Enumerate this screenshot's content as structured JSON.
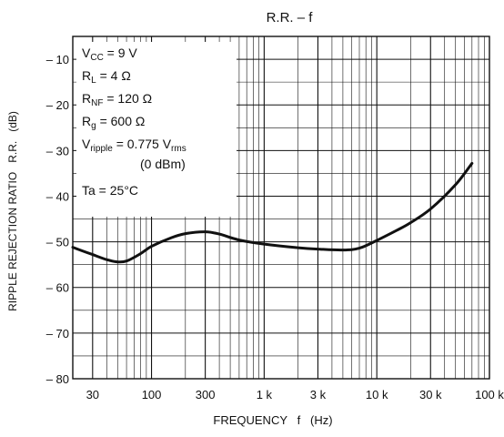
{
  "chart_data": {
    "type": "line",
    "title": "R.R. – f",
    "xlabel": "FREQUENCY   f   (Hz)",
    "ylabel": "RIPPLE REJECTION RATIO   R.R.   (dB)",
    "x_scale": "log",
    "xlim": [
      20,
      100000
    ],
    "ylim": [
      -80,
      -5
    ],
    "x_ticks": [
      {
        "value": 30,
        "label": "30"
      },
      {
        "value": 100,
        "label": "100"
      },
      {
        "value": 300,
        "label": "300"
      },
      {
        "value": 1000,
        "label": "1 k"
      },
      {
        "value": 3000,
        "label": "3 k"
      },
      {
        "value": 10000,
        "label": "10 k"
      },
      {
        "value": 30000,
        "label": "30 k"
      },
      {
        "value": 100000,
        "label": "100 k"
      }
    ],
    "y_ticks": [
      {
        "value": -10,
        "label": "– 10"
      },
      {
        "value": -20,
        "label": "– 20"
      },
      {
        "value": -30,
        "label": "– 30"
      },
      {
        "value": -40,
        "label": "– 40"
      },
      {
        "value": -50,
        "label": "– 50"
      },
      {
        "value": -60,
        "label": "– 60"
      },
      {
        "value": -70,
        "label": "– 70"
      },
      {
        "value": -80,
        "label": "– 80"
      }
    ],
    "grid": true,
    "series": [
      {
        "x": [
          20,
          30,
          40,
          50,
          60,
          80,
          100,
          150,
          200,
          300,
          400,
          600,
          1000,
          2000,
          3000,
          5000,
          7000,
          10000,
          15000,
          20000,
          30000,
          50000,
          70000
        ],
        "y": [
          -51.2,
          -52.8,
          -53.9,
          -54.4,
          -54.2,
          -52.6,
          -51.0,
          -49.1,
          -48.2,
          -47.8,
          -48.3,
          -49.6,
          -50.5,
          -51.3,
          -51.6,
          -51.8,
          -51.4,
          -49.7,
          -47.5,
          -45.8,
          -42.8,
          -37.5,
          -32.8
        ]
      }
    ],
    "conditions": [
      {
        "base": "V",
        "sub": "CC",
        "rest": " = 9 V"
      },
      {
        "base": "R",
        "sub": "L",
        "rest": " = 4 Ω"
      },
      {
        "base": "R",
        "sub": "NF",
        "rest": " = 120 Ω"
      },
      {
        "base": "R",
        "sub": "g",
        "rest": " = 600 Ω"
      },
      {
        "base": "V",
        "sub": "ripple",
        "rest": " = 0.775 V",
        "sub2": "rms"
      },
      {
        "base": "",
        "sub": "",
        "rest": "(0 dBm)"
      },
      {
        "base": "Ta = 25°C",
        "sub": "",
        "rest": ""
      }
    ]
  }
}
